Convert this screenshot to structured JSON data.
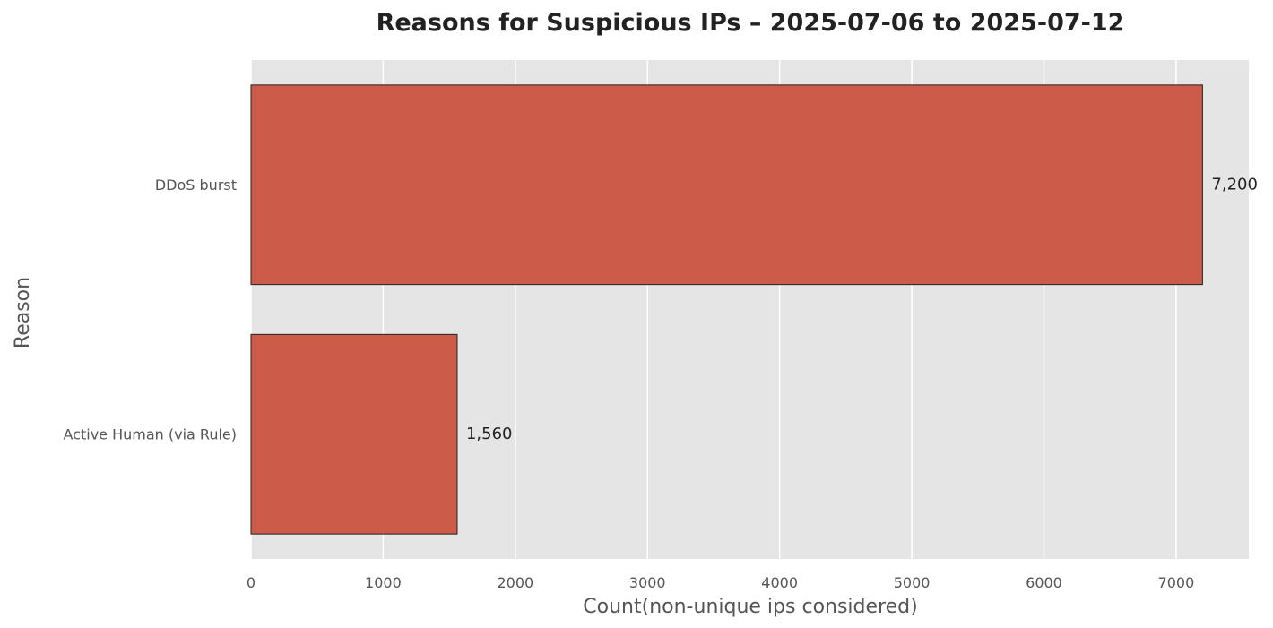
{
  "chart_data": {
    "type": "bar",
    "orientation": "horizontal",
    "title": "Reasons for Suspicious IPs – 2025-07-06 to 2025-07-12",
    "xlabel": "Count(non-unique ips considered)",
    "ylabel": "Reason",
    "categories": [
      "DDoS burst",
      "Active Human (via Rule)"
    ],
    "values": [
      7200,
      1560
    ],
    "value_labels": [
      "7,200",
      "1,560"
    ],
    "xlim": [
      0,
      7550
    ],
    "xticks": [
      0,
      1000,
      2000,
      3000,
      4000,
      5000,
      6000,
      7000
    ],
    "xtick_labels": [
      "0",
      "1000",
      "2000",
      "3000",
      "4000",
      "5000",
      "6000",
      "7000"
    ],
    "grid": true,
    "bar_color": "#cd5b4a",
    "background_color": "#e5e5e5"
  }
}
